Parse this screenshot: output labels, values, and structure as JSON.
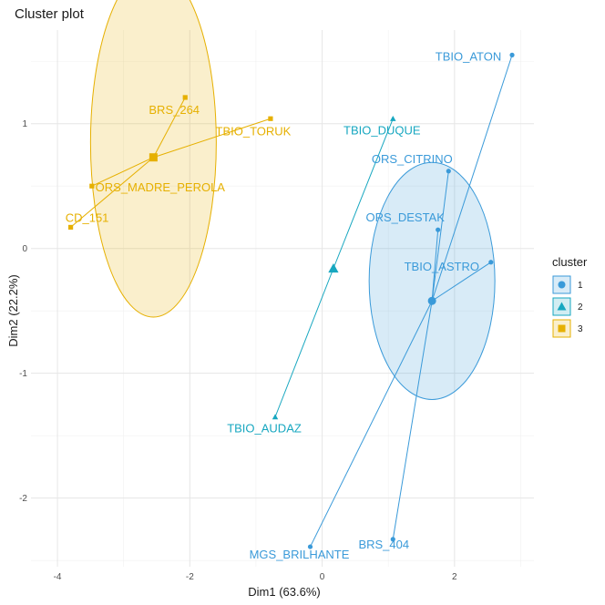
{
  "chart_data": {
    "type": "scatter",
    "title": "Cluster plot",
    "xlabel": "Dim1 (63.6%)",
    "ylabel": "Dim2 (22.2%)",
    "xlim": [
      -4.4,
      3.2
    ],
    "ylim": [
      -2.55,
      1.75
    ],
    "x_ticks": [
      -4,
      -2,
      0,
      2
    ],
    "y_ticks": [
      -2,
      -1,
      0,
      1
    ],
    "x_tick_labels": [
      "-4",
      "-2",
      "0",
      "2"
    ],
    "y_tick_labels": [
      "-2",
      "-1",
      "0",
      "1"
    ],
    "grid": true,
    "legend": {
      "title": "cluster",
      "position": "right",
      "entries": [
        "1",
        "2",
        "3"
      ]
    },
    "clusters": [
      {
        "name": "1",
        "color": "#3a9ad9",
        "shape": "circle",
        "center": [
          1.66,
          -0.42
        ],
        "ellipse": {
          "cx": 1.66,
          "cy": -0.26,
          "rx": 0.95,
          "ry": 0.95
        },
        "points": [
          {
            "label": "TBIO_ATON",
            "x": 2.87,
            "y": 1.55
          },
          {
            "label": "ORS_CITRINO",
            "x": 1.91,
            "y": 0.62
          },
          {
            "label": "ORS_DESTAK",
            "x": 1.75,
            "y": 0.15
          },
          {
            "label": "TBIO_ASTRO",
            "x": 2.55,
            "y": -0.11
          },
          {
            "label": "BRS_404",
            "x": 1.07,
            "y": -2.33
          },
          {
            "label": "MGS_BRILHANTE",
            "x": -0.18,
            "y": -2.39
          }
        ]
      },
      {
        "name": "2",
        "color": "#17a7c0",
        "shape": "triangle",
        "center": [
          0.17,
          -0.16
        ],
        "points": [
          {
            "label": "TBIO_DUQUE",
            "x": 1.07,
            "y": 1.04
          },
          {
            "label": "TBIO_AUDAZ",
            "x": -0.71,
            "y": -1.35
          }
        ]
      },
      {
        "name": "3",
        "color": "#e6b000",
        "shape": "square",
        "center": [
          -2.55,
          0.73
        ],
        "ellipse": {
          "cx": -2.55,
          "cy": 0.85,
          "rx": 0.95,
          "ry": 1.4
        },
        "points": [
          {
            "label": "BRS_264",
            "x": -2.07,
            "y": 1.21
          },
          {
            "label": "TBIO_TORUK",
            "x": -0.78,
            "y": 1.04
          },
          {
            "label": "ORS_MADRE_PEROLA",
            "x": -3.48,
            "y": 0.5
          },
          {
            "label": "CD_151",
            "x": -3.8,
            "y": 0.17
          }
        ]
      }
    ]
  }
}
